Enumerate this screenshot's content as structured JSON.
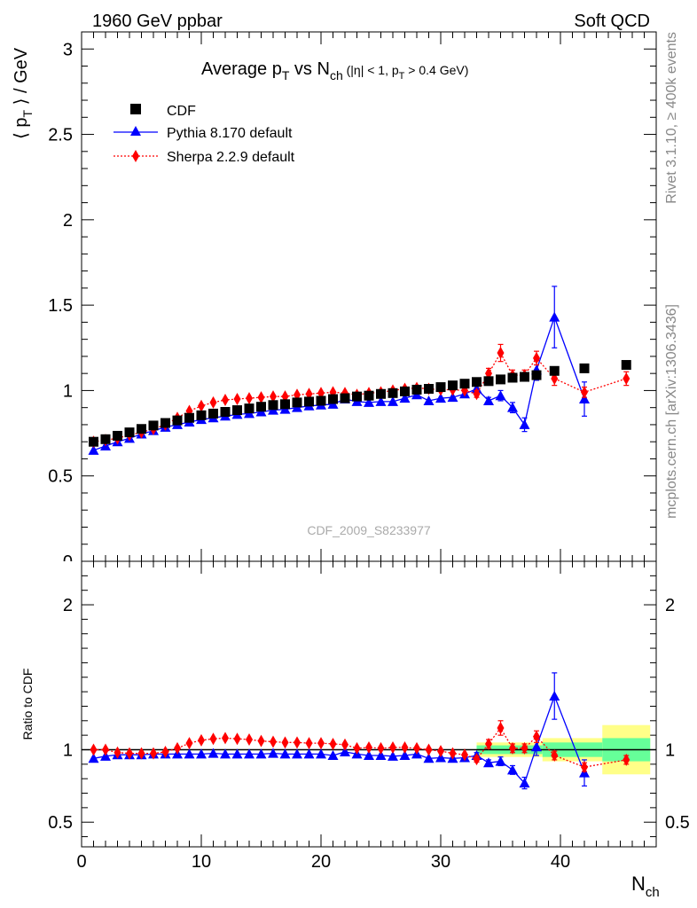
{
  "header": {
    "left": "1960 GeV ppbar",
    "right": "Soft QCD",
    "side_top": "Rivet 3.1.10, ≥ 400k events",
    "side_bottom": "mcplots.cern.ch [arXiv:1306.3436]",
    "watermark": "CDF_2009_S8233977"
  },
  "chart_data": {
    "type": "scatter",
    "title_main": "Average p",
    "title_sub_T": "T",
    "title_vs": " vs N",
    "title_sub_ch": "ch",
    "title_cut_a": " (|η| < 1, p",
    "title_cut_sub": "T",
    "title_cut_b": " > 0.4 GeV)",
    "ylabel_main": "⟨ p",
    "ylabel_sub": "T",
    "ylabel_rest": " ⟩ / GeV",
    "ylabel_ratio": "Ratio to CDF",
    "xlabel": "N",
    "xlabel_sub": "ch",
    "xlim": [
      0,
      48
    ],
    "ylim_main": [
      0,
      3.1
    ],
    "ylim_ratio": [
      0.33,
      2.3
    ],
    "x_ticks": [
      "0",
      "10",
      "20",
      "30",
      "40"
    ],
    "y_ticks_main": [
      "0.5",
      "1",
      "1.5",
      "2",
      "2.5",
      "3"
    ],
    "y_ticks_main_clipped": "0",
    "y_ticks_ratio": [
      "0.5",
      "1",
      "2"
    ],
    "colors": {
      "data": "#000000",
      "pythia": "#0000ff",
      "sherpa": "#ff0000",
      "band_inner": "#66ff99",
      "band_outer": "#ffff88"
    },
    "legend": [
      {
        "name": "CDF",
        "marker": "square"
      },
      {
        "name": "Pythia 8.170 default",
        "marker": "triangle"
      },
      {
        "name": "Sherpa 2.2.9 default",
        "marker": "diamond"
      }
    ],
    "series": [
      {
        "name": "CDF",
        "x": [
          1,
          2,
          3,
          4,
          5,
          6,
          7,
          8,
          9,
          10,
          11,
          12,
          13,
          14,
          15,
          16,
          17,
          18,
          19,
          20,
          21,
          22,
          23,
          24,
          25,
          26,
          27,
          28,
          29,
          30,
          31,
          32,
          33,
          34,
          35,
          36,
          37,
          38,
          39.5,
          42,
          45.5
        ],
        "y": [
          0.7,
          0.715,
          0.735,
          0.755,
          0.775,
          0.795,
          0.81,
          0.825,
          0.84,
          0.855,
          0.865,
          0.875,
          0.885,
          0.895,
          0.905,
          0.915,
          0.92,
          0.93,
          0.935,
          0.94,
          0.95,
          0.955,
          0.965,
          0.97,
          0.98,
          0.985,
          0.995,
          1.005,
          1.01,
          1.02,
          1.03,
          1.04,
          1.05,
          1.055,
          1.065,
          1.075,
          1.08,
          1.09,
          1.115,
          1.13,
          1.15
        ]
      },
      {
        "name": "Pythia 8.170 default",
        "x": [
          1,
          2,
          3,
          4,
          5,
          6,
          7,
          8,
          9,
          10,
          11,
          12,
          13,
          14,
          15,
          16,
          17,
          18,
          19,
          20,
          21,
          22,
          23,
          24,
          25,
          26,
          27,
          28,
          29,
          30,
          31,
          32,
          33,
          34,
          35,
          36,
          37,
          38,
          39.5,
          42
        ],
        "y": [
          0.65,
          0.675,
          0.7,
          0.72,
          0.745,
          0.765,
          0.785,
          0.8,
          0.815,
          0.83,
          0.84,
          0.85,
          0.86,
          0.865,
          0.875,
          0.885,
          0.89,
          0.9,
          0.91,
          0.915,
          0.92,
          0.95,
          0.935,
          0.93,
          0.935,
          0.935,
          0.955,
          0.975,
          0.94,
          0.955,
          0.96,
          0.98,
          1.01,
          0.94,
          0.97,
          0.9,
          0.8,
          1.12,
          1.43,
          0.95
        ],
        "err": [
          0,
          0,
          0,
          0,
          0,
          0,
          0,
          0,
          0,
          0,
          0,
          0,
          0,
          0,
          0,
          0,
          0,
          0,
          0,
          0,
          0,
          0,
          0,
          0,
          0,
          0,
          0,
          0,
          0,
          0,
          0,
          0,
          0.02,
          0.02,
          0.03,
          0.03,
          0.04,
          0.06,
          0.18,
          0.1
        ]
      },
      {
        "name": "Sherpa 2.2.9 default",
        "x": [
          1,
          2,
          3,
          4,
          5,
          6,
          7,
          8,
          9,
          10,
          11,
          12,
          13,
          14,
          15,
          16,
          17,
          18,
          19,
          20,
          21,
          22,
          23,
          24,
          25,
          26,
          27,
          28,
          29,
          30,
          31,
          32,
          33,
          34,
          35,
          36,
          37,
          38,
          39.5,
          42,
          45.5
        ],
        "y": [
          0.7,
          0.71,
          0.72,
          0.74,
          0.755,
          0.775,
          0.8,
          0.84,
          0.88,
          0.91,
          0.93,
          0.945,
          0.95,
          0.955,
          0.96,
          0.965,
          0.965,
          0.975,
          0.98,
          0.985,
          0.99,
          0.985,
          0.975,
          0.985,
          0.99,
          1.0,
          1.01,
          1.015,
          1.01,
          1.005,
          1.005,
          1.0,
          0.98,
          1.1,
          1.22,
          1.09,
          1.09,
          1.19,
          1.07,
          0.99,
          1.07
        ],
        "err": [
          0,
          0,
          0,
          0,
          0,
          0,
          0,
          0,
          0,
          0,
          0,
          0,
          0,
          0,
          0,
          0,
          0,
          0,
          0,
          0,
          0,
          0,
          0,
          0,
          0,
          0,
          0,
          0,
          0,
          0,
          0,
          0,
          0.02,
          0.03,
          0.05,
          0.03,
          0.03,
          0.04,
          0.04,
          0.03,
          0.04
        ]
      }
    ],
    "ratio_series": [
      {
        "name": "Pythia 8.170 default",
        "x": [
          1,
          2,
          3,
          4,
          5,
          6,
          7,
          8,
          9,
          10,
          11,
          12,
          13,
          14,
          15,
          16,
          17,
          18,
          19,
          20,
          21,
          22,
          23,
          24,
          25,
          26,
          27,
          28,
          29,
          30,
          31,
          32,
          33,
          34,
          35,
          36,
          37,
          38,
          39.5,
          42
        ],
        "y": [
          0.94,
          0.955,
          0.965,
          0.965,
          0.965,
          0.97,
          0.97,
          0.97,
          0.97,
          0.97,
          0.975,
          0.97,
          0.97,
          0.97,
          0.97,
          0.975,
          0.97,
          0.97,
          0.97,
          0.97,
          0.96,
          0.985,
          0.97,
          0.96,
          0.96,
          0.955,
          0.96,
          0.97,
          0.94,
          0.945,
          0.94,
          0.945,
          0.96,
          0.91,
          0.92,
          0.86,
          0.77,
          1.02,
          1.37,
          0.84
        ],
        "err": [
          0,
          0,
          0,
          0,
          0,
          0,
          0,
          0,
          0,
          0,
          0,
          0,
          0,
          0,
          0,
          0,
          0,
          0,
          0,
          0,
          0,
          0,
          0,
          0,
          0,
          0,
          0,
          0,
          0,
          0,
          0,
          0,
          0.02,
          0.02,
          0.03,
          0.03,
          0.04,
          0.06,
          0.16,
          0.09
        ]
      },
      {
        "name": "Sherpa 2.2.9 default",
        "x": [
          1,
          2,
          3,
          4,
          5,
          6,
          7,
          8,
          9,
          10,
          11,
          12,
          13,
          14,
          15,
          16,
          17,
          18,
          19,
          20,
          21,
          22,
          23,
          24,
          25,
          26,
          27,
          28,
          29,
          30,
          31,
          32,
          33,
          34,
          35,
          36,
          37,
          38,
          39.5,
          42,
          45.5
        ],
        "y": [
          1.0,
          1.0,
          0.98,
          0.975,
          0.975,
          0.975,
          0.985,
          1.01,
          1.045,
          1.065,
          1.075,
          1.08,
          1.075,
          1.07,
          1.06,
          1.055,
          1.05,
          1.05,
          1.045,
          1.045,
          1.04,
          1.035,
          1.01,
          1.015,
          1.01,
          1.015,
          1.015,
          1.01,
          1.0,
          0.99,
          0.975,
          0.965,
          0.935,
          1.04,
          1.15,
          1.01,
          1.01,
          1.09,
          0.96,
          0.88,
          0.93
        ],
        "err": [
          0,
          0,
          0,
          0,
          0,
          0,
          0,
          0,
          0,
          0,
          0,
          0,
          0,
          0,
          0,
          0,
          0,
          0,
          0,
          0,
          0,
          0,
          0,
          0,
          0,
          0,
          0,
          0,
          0,
          0,
          0,
          0,
          0.02,
          0.03,
          0.05,
          0.03,
          0.03,
          0.04,
          0.03,
          0.03,
          0.03
        ]
      }
    ],
    "uncertainty_bands": [
      {
        "x0": 33,
        "x1": 38.5,
        "inner": 0.03,
        "outer": 0.05
      },
      {
        "x0": 38.5,
        "x1": 43.5,
        "inner": 0.05,
        "outer": 0.08
      },
      {
        "x0": 43.5,
        "x1": 47.5,
        "inner": 0.08,
        "outer": 0.17
      }
    ]
  }
}
